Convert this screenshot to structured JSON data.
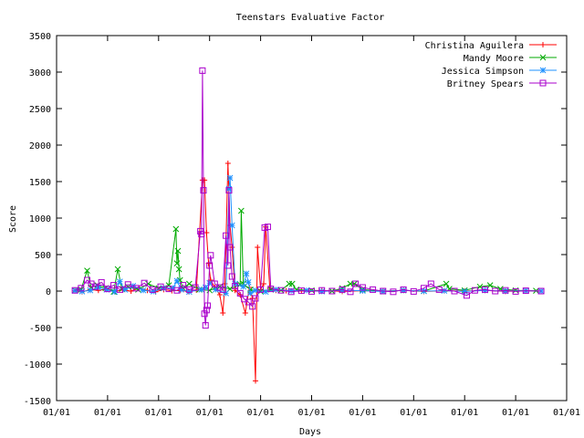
{
  "chart_data": {
    "type": "line",
    "title": "Teenstars Evaluative Factor",
    "xlabel": "Days",
    "ylabel": "Score",
    "ylim": [
      -1500,
      3500
    ],
    "yticks": [
      -1500,
      -1000,
      -500,
      0,
      500,
      1000,
      1500,
      2000,
      2500,
      3000,
      3500
    ],
    "xlim": [
      0,
      500
    ],
    "xticks": [
      0,
      50,
      100,
      150,
      200,
      250,
      300,
      350,
      400,
      450,
      500
    ],
    "xtick_labels": [
      "01/01",
      "01/01",
      "01/01",
      "01/01",
      "01/01",
      "01/01",
      "01/01",
      "01/01",
      "01/01",
      "01/01",
      "01/01"
    ],
    "grid": false,
    "legend_position": "top-right",
    "series": [
      {
        "name": "Christina Aguilera",
        "color": "#ff0000",
        "marker": "plus",
        "points": [
          [
            18,
            5
          ],
          [
            25,
            -10
          ],
          [
            33,
            20
          ],
          [
            41,
            10
          ],
          [
            49,
            30
          ],
          [
            57,
            -5
          ],
          [
            65,
            15
          ],
          [
            73,
            0
          ],
          [
            81,
            40
          ],
          [
            89,
            10
          ],
          [
            97,
            -10
          ],
          [
            105,
            20
          ],
          [
            113,
            5
          ],
          [
            121,
            10
          ],
          [
            129,
            -5
          ],
          [
            137,
            15
          ],
          [
            143,
            1520
          ],
          [
            145,
            1520
          ],
          [
            147,
            800
          ],
          [
            149,
            380
          ],
          [
            151,
            150
          ],
          [
            155,
            50
          ],
          [
            160,
            -50
          ],
          [
            163,
            -300
          ],
          [
            165,
            100
          ],
          [
            168,
            1750
          ],
          [
            170,
            900
          ],
          [
            172,
            600
          ],
          [
            175,
            10
          ],
          [
            180,
            -50
          ],
          [
            185,
            -300
          ],
          [
            189,
            50
          ],
          [
            192,
            -100
          ],
          [
            195,
            -1230
          ],
          [
            197,
            600
          ],
          [
            200,
            20
          ],
          [
            203,
            100
          ],
          [
            205,
            880
          ],
          [
            209,
            40
          ],
          [
            215,
            10
          ],
          [
            225,
            5
          ],
          [
            240,
            0
          ],
          [
            260,
            10
          ],
          [
            280,
            -5
          ],
          [
            300,
            5
          ],
          [
            320,
            0
          ],
          [
            340,
            10
          ],
          [
            360,
            -5
          ],
          [
            380,
            5
          ],
          [
            400,
            0
          ],
          [
            420,
            10
          ],
          [
            440,
            -5
          ],
          [
            460,
            5
          ],
          [
            475,
            0
          ]
        ]
      },
      {
        "name": "Mandy Moore",
        "color": "#00aa00",
        "marker": "cross",
        "points": [
          [
            18,
            10
          ],
          [
            24,
            20
          ],
          [
            30,
            280
          ],
          [
            34,
            50
          ],
          [
            40,
            80
          ],
          [
            48,
            40
          ],
          [
            56,
            -10
          ],
          [
            60,
            300
          ],
          [
            64,
            30
          ],
          [
            70,
            60
          ],
          [
            80,
            20
          ],
          [
            90,
            100
          ],
          [
            100,
            40
          ],
          [
            110,
            80
          ],
          [
            117,
            850
          ],
          [
            118,
            380
          ],
          [
            119,
            550
          ],
          [
            120,
            300
          ],
          [
            121,
            150
          ],
          [
            124,
            40
          ],
          [
            130,
            100
          ],
          [
            140,
            20
          ],
          [
            150,
            10
          ],
          [
            160,
            60
          ],
          [
            170,
            30
          ],
          [
            180,
            90
          ],
          [
            181,
            1100
          ],
          [
            183,
            100
          ],
          [
            190,
            20
          ],
          [
            200,
            -5
          ],
          [
            210,
            20
          ],
          [
            220,
            10
          ],
          [
            228,
            100
          ],
          [
            231,
            100
          ],
          [
            235,
            20
          ],
          [
            250,
            10
          ],
          [
            270,
            0
          ],
          [
            280,
            40
          ],
          [
            288,
            100
          ],
          [
            292,
            100
          ],
          [
            300,
            20
          ],
          [
            320,
            -5
          ],
          [
            340,
            10
          ],
          [
            360,
            0
          ],
          [
            382,
            100
          ],
          [
            385,
            30
          ],
          [
            400,
            10
          ],
          [
            415,
            60
          ],
          [
            425,
            80
          ],
          [
            435,
            30
          ],
          [
            450,
            10
          ],
          [
            470,
            5
          ]
        ]
      },
      {
        "name": "Jessica Simpson",
        "color": "#1e90ff",
        "marker": "star",
        "points": [
          [
            18,
            5
          ],
          [
            25,
            -5
          ],
          [
            33,
            10
          ],
          [
            41,
            50
          ],
          [
            49,
            20
          ],
          [
            57,
            -10
          ],
          [
            62,
            130
          ],
          [
            67,
            20
          ],
          [
            75,
            70
          ],
          [
            85,
            10
          ],
          [
            95,
            -5
          ],
          [
            105,
            40
          ],
          [
            114,
            40
          ],
          [
            118,
            140
          ],
          [
            122,
            20
          ],
          [
            130,
            -10
          ],
          [
            142,
            20
          ],
          [
            146,
            50
          ],
          [
            150,
            110
          ],
          [
            156,
            20
          ],
          [
            166,
            -30
          ],
          [
            169,
            1400
          ],
          [
            170,
            1550
          ],
          [
            172,
            900
          ],
          [
            175,
            100
          ],
          [
            183,
            60
          ],
          [
            186,
            240
          ],
          [
            188,
            120
          ],
          [
            190,
            -30
          ],
          [
            195,
            10
          ],
          [
            205,
            -10
          ],
          [
            215,
            20
          ],
          [
            230,
            5
          ],
          [
            245,
            10
          ],
          [
            260,
            -5
          ],
          [
            280,
            10
          ],
          [
            300,
            5
          ],
          [
            320,
            -5
          ],
          [
            340,
            10
          ],
          [
            360,
            0
          ],
          [
            380,
            5
          ],
          [
            400,
            -5
          ],
          [
            420,
            10
          ],
          [
            440,
            0
          ],
          [
            460,
            5
          ],
          [
            475,
            0
          ]
        ]
      },
      {
        "name": "Britney Spears",
        "color": "#aa00cc",
        "marker": "square",
        "points": [
          [
            18,
            10
          ],
          [
            24,
            40
          ],
          [
            30,
            150
          ],
          [
            34,
            100
          ],
          [
            38,
            60
          ],
          [
            44,
            120
          ],
          [
            50,
            30
          ],
          [
            56,
            80
          ],
          [
            62,
            20
          ],
          [
            70,
            90
          ],
          [
            78,
            40
          ],
          [
            86,
            110
          ],
          [
            94,
            20
          ],
          [
            102,
            60
          ],
          [
            110,
            30
          ],
          [
            118,
            10
          ],
          [
            124,
            80
          ],
          [
            130,
            20
          ],
          [
            136,
            50
          ],
          [
            141,
            820
          ],
          [
            142,
            780
          ],
          [
            143,
            3020
          ],
          [
            144,
            1380
          ],
          [
            145,
            -310
          ],
          [
            146,
            -470
          ],
          [
            147,
            -260
          ],
          [
            148,
            -200
          ],
          [
            150,
            350
          ],
          [
            151,
            490
          ],
          [
            155,
            100
          ],
          [
            160,
            50
          ],
          [
            163,
            20
          ],
          [
            166,
            760
          ],
          [
            168,
            350
          ],
          [
            169,
            1380
          ],
          [
            170,
            600
          ],
          [
            172,
            200
          ],
          [
            175,
            70
          ],
          [
            180,
            -30
          ],
          [
            184,
            -110
          ],
          [
            188,
            -150
          ],
          [
            192,
            -210
          ],
          [
            195,
            -100
          ],
          [
            200,
            20
          ],
          [
            204,
            870
          ],
          [
            207,
            880
          ],
          [
            210,
            30
          ],
          [
            220,
            10
          ],
          [
            230,
            -10
          ],
          [
            240,
            5
          ],
          [
            250,
            -5
          ],
          [
            260,
            10
          ],
          [
            270,
            0
          ],
          [
            280,
            20
          ],
          [
            288,
            -10
          ],
          [
            293,
            100
          ],
          [
            300,
            50
          ],
          [
            310,
            20
          ],
          [
            320,
            0
          ],
          [
            330,
            -10
          ],
          [
            340,
            20
          ],
          [
            350,
            -5
          ],
          [
            360,
            40
          ],
          [
            367,
            100
          ],
          [
            375,
            20
          ],
          [
            390,
            0
          ],
          [
            402,
            -60
          ],
          [
            410,
            10
          ],
          [
            420,
            20
          ],
          [
            430,
            0
          ],
          [
            440,
            10
          ],
          [
            450,
            -5
          ],
          [
            460,
            5
          ],
          [
            475,
            0
          ]
        ]
      }
    ]
  }
}
